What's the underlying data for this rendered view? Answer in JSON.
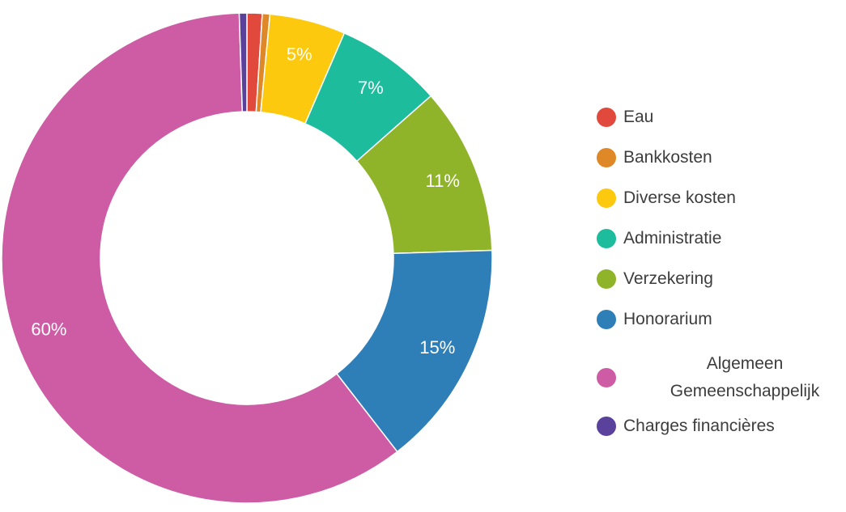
{
  "chart_data": {
    "type": "pie",
    "donut": true,
    "inner_radius_ratio": 0.6,
    "unit": "%",
    "legend_position": "right",
    "background_color": "#ffffff",
    "slice_label_color": "#ffffff",
    "legend_text_color": "#3d3d3d",
    "separator_color": "#ffffff",
    "start_angle_deg": 0,
    "direction": "clockwise",
    "segments": [
      {
        "label": "Eau",
        "value": 1,
        "display_label": "",
        "color": "#e2493d",
        "legend_lines": [
          "Eau"
        ]
      },
      {
        "label": "Bankkosten",
        "value": 0.5,
        "display_label": "",
        "color": "#de8827",
        "legend_lines": [
          "Bankkosten"
        ]
      },
      {
        "label": "Diverse kosten",
        "value": 5,
        "display_label": "5%",
        "color": "#fdc90e",
        "legend_lines": [
          "Diverse kosten"
        ]
      },
      {
        "label": "Administratie",
        "value": 7,
        "display_label": "7%",
        "color": "#1dbc9d",
        "legend_lines": [
          "Administratie"
        ]
      },
      {
        "label": "Verzekering",
        "value": 11,
        "display_label": "11%",
        "color": "#8fb42a",
        "legend_lines": [
          "Verzekering"
        ]
      },
      {
        "label": "Honorarium",
        "value": 15,
        "display_label": "15%",
        "color": "#2e7eb8",
        "legend_lines": [
          "Honorarium"
        ]
      },
      {
        "label": "Algemeen Gemeenschappelijk",
        "value": 60,
        "display_label": "60%",
        "color": "#cd5ca4",
        "legend_lines": [
          "Algemeen",
          "Gemeenschappelijk"
        ]
      },
      {
        "label": "Charges financières",
        "value": 0.5,
        "display_label": "",
        "color": "#5a419b",
        "legend_lines": [
          "Charges financières"
        ]
      }
    ]
  }
}
